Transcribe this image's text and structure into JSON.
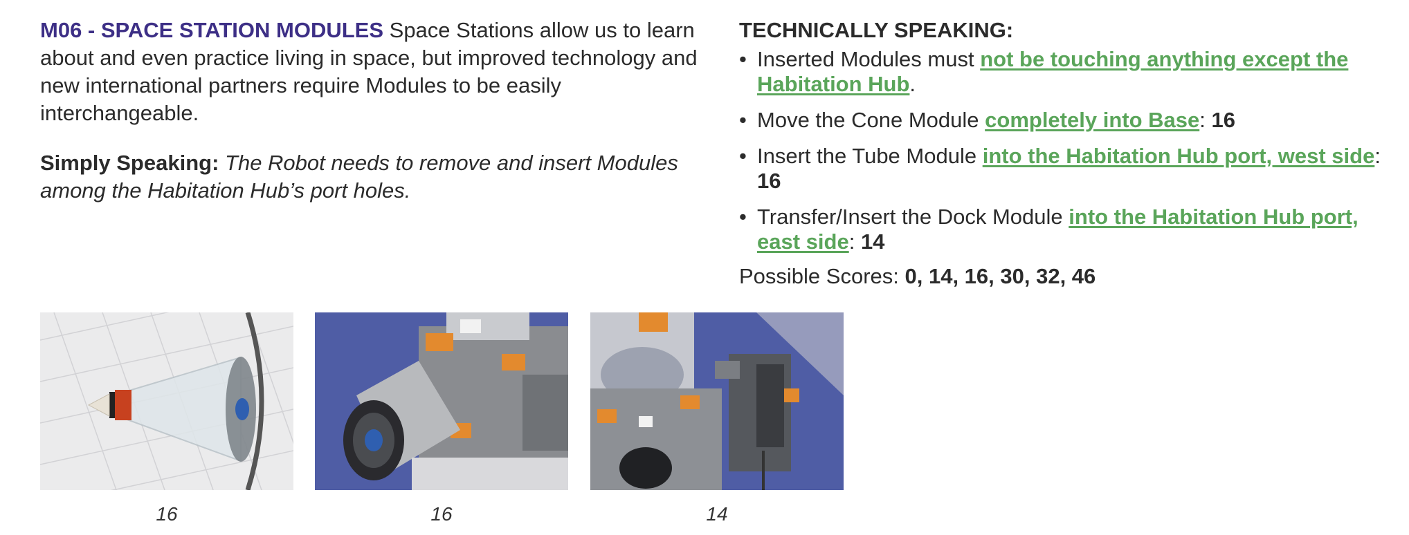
{
  "mission": {
    "title": "M06 - SPACE STATION MODULES",
    "intro": " Space Stations allow us to learn about and even practice living in space, but improved technology and new international partners require Modules to be easily interchangeable."
  },
  "simply": {
    "label": "Simply Speaking:",
    "text": " The Robot needs to remove and insert Modules among the Habitation Hub’s port holes."
  },
  "technical": {
    "heading": "TECHNICALLY SPEAKING:",
    "bullets": [
      {
        "pre": "Inserted Modules must ",
        "link": "not be touching anything except the Habitation Hub",
        "post": ".",
        "points": ""
      },
      {
        "pre": "Move the Cone Module ",
        "link": "completely into Base",
        "post": ": ",
        "points": "16"
      },
      {
        "pre": "Insert the Tube Module ",
        "link": "into the Habitation Hub port, west side",
        "post": ": ",
        "points": "16"
      },
      {
        "pre": "Transfer/Insert the Dock Module ",
        "link": "into the Habitation Hub port, east side",
        "post": ": ",
        "points": "14"
      }
    ],
    "scores_label": "Possible Scores: ",
    "scores_values": "0, 14, 16, 30, 32, 46"
  },
  "photos": [
    {
      "caption": "16",
      "icon": "cone-module-photo"
    },
    {
      "caption": "16",
      "icon": "tube-module-photo"
    },
    {
      "caption": "14",
      "icon": "dock-module-photo"
    }
  ],
  "bullet_glyph": "•",
  "colors": {
    "title": "#3d2f86",
    "link": "#5aa55a",
    "text": "#2b2b2b",
    "photo_bg": "#4f5da5"
  }
}
